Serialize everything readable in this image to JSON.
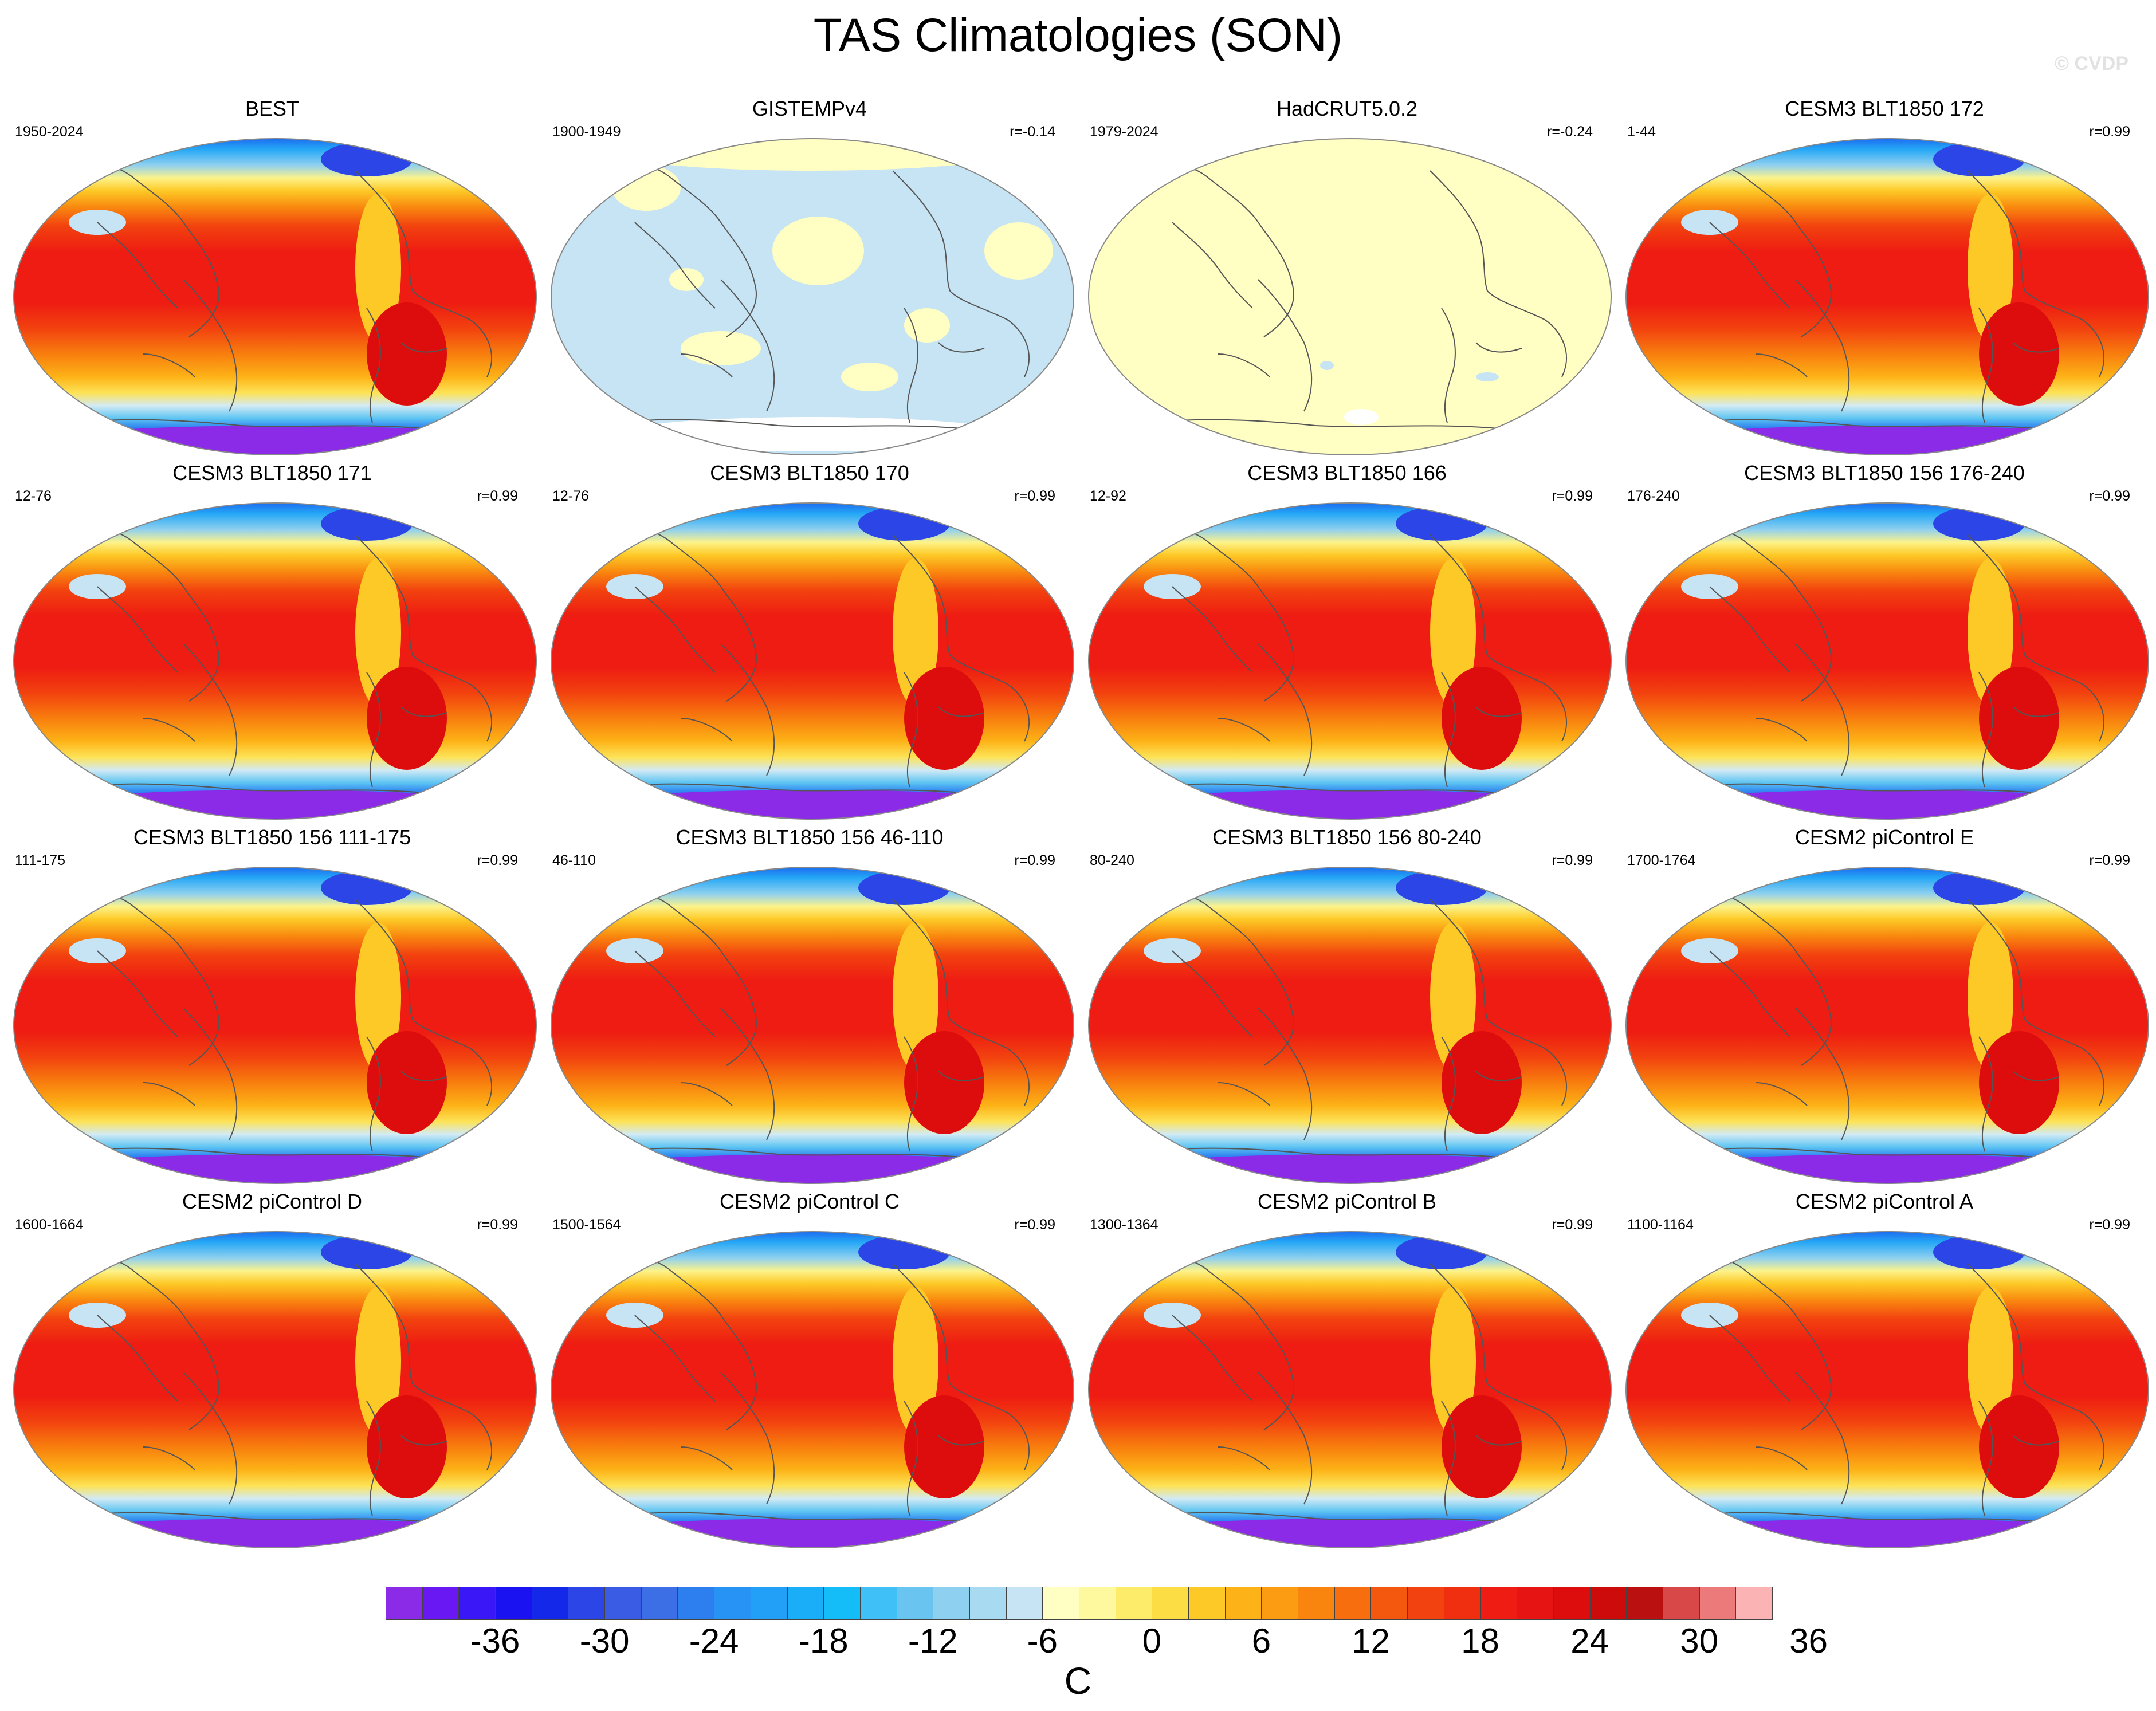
{
  "title": "TAS Climatologies (SON)",
  "watermark": "© CVDP",
  "panels": [
    {
      "title": "BEST",
      "years": "1950-2024",
      "corr": "",
      "pattern": "full"
    },
    {
      "title": "GISTEMPv4",
      "years": "1900-1949",
      "corr": "r=-0.14",
      "pattern": "gis"
    },
    {
      "title": "HadCRUT5.0.2",
      "years": "1979-2024",
      "corr": "r=-0.24",
      "pattern": "had"
    },
    {
      "title": "CESM3 BLT1850 172",
      "years": "1-44",
      "corr": "r=0.99",
      "pattern": "full"
    },
    {
      "title": "CESM3 BLT1850 171",
      "years": "12-76",
      "corr": "r=0.99",
      "pattern": "full"
    },
    {
      "title": "CESM3 BLT1850 170",
      "years": "12-76",
      "corr": "r=0.99",
      "pattern": "full"
    },
    {
      "title": "CESM3 BLT1850 166",
      "years": "12-92",
      "corr": "r=0.99",
      "pattern": "full"
    },
    {
      "title": "CESM3 BLT1850 156 176-240",
      "years": "176-240",
      "corr": "r=0.99",
      "pattern": "full"
    },
    {
      "title": "CESM3 BLT1850 156 111-175",
      "years": "111-175",
      "corr": "r=0.99",
      "pattern": "full"
    },
    {
      "title": "CESM3 BLT1850 156 46-110",
      "years": "46-110",
      "corr": "r=0.99",
      "pattern": "full"
    },
    {
      "title": "CESM3 BLT1850 156 80-240",
      "years": "80-240",
      "corr": "r=0.99",
      "pattern": "full"
    },
    {
      "title": "CESM2 piControl E",
      "years": "1700-1764",
      "corr": "r=0.99",
      "pattern": "full"
    },
    {
      "title": "CESM2 piControl D",
      "years": "1600-1664",
      "corr": "r=0.99",
      "pattern": "full"
    },
    {
      "title": "CESM2 piControl C",
      "years": "1500-1564",
      "corr": "r=0.99",
      "pattern": "full"
    },
    {
      "title": "CESM2 piControl B",
      "years": "1300-1364",
      "corr": "r=0.99",
      "pattern": "full"
    },
    {
      "title": "CESM2 piControl A",
      "years": "1100-1164",
      "corr": "r=0.99",
      "pattern": "full"
    }
  ],
  "colorbar": {
    "units": "C",
    "tick_labels": [
      "-36",
      "-30",
      "-24",
      "-18",
      "-12",
      "-6",
      "0",
      "6",
      "12",
      "18",
      "24",
      "30",
      "36"
    ],
    "colors": [
      "#8b2be8",
      "#6a18f3",
      "#3a17f6",
      "#1a12f0",
      "#1428ea",
      "#2b45e6",
      "#3a5ce4",
      "#3c6fe6",
      "#2d7ff0",
      "#2793f4",
      "#229ff7",
      "#1aaef8",
      "#14bdf8",
      "#3fc0f6",
      "#69c5ef",
      "#8ed0ef",
      "#a8dbf2",
      "#c6e4f3",
      "#fffec3",
      "#fef89f",
      "#fdeb6a",
      "#fddd44",
      "#fdc926",
      "#fdb317",
      "#fb9c12",
      "#f9850e",
      "#f66e0d",
      "#f4580e",
      "#f2420f",
      "#f02e10",
      "#ee1c12",
      "#e71414",
      "#dd0d0d",
      "#cd0b0b",
      "#bb1010",
      "#d84848",
      "#ec7a7a",
      "#fbb3b3"
    ]
  }
}
